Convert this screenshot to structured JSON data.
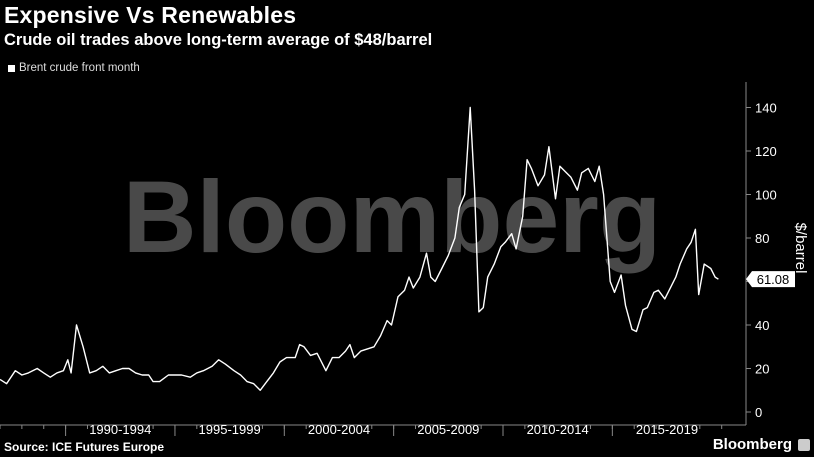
{
  "header": {
    "title": "Expensive Vs Renewables",
    "subtitle": "Crude oil trades above long-term average of $48/barrel"
  },
  "legend": {
    "label": "Brent crude front month"
  },
  "footer": {
    "source": "Source: ICE Futures Europe",
    "brand": "Bloomberg"
  },
  "watermark": "Bloomberg",
  "colors": {
    "background": "#000000",
    "line": "#ffffff",
    "axis": "#888888",
    "watermark": "#666666"
  },
  "chart_data": {
    "type": "line",
    "title": "Expensive Vs Renewables",
    "subtitle": "Crude oil trades above long-term average of $48/barrel",
    "ylabel": "$/barrel",
    "ylim": [
      0,
      145
    ],
    "xlim": [
      1987.0,
      2020.7
    ],
    "yticks": [
      0,
      20,
      40,
      60,
      80,
      100,
      120,
      140
    ],
    "xtick_labels": [
      {
        "label": "1990-1994",
        "start": 1990,
        "end": 1995
      },
      {
        "label": "1995-1999",
        "start": 1995,
        "end": 2000
      },
      {
        "label": "2000-2004",
        "start": 2000,
        "end": 2005
      },
      {
        "label": "2005-2009",
        "start": 2005,
        "end": 2010
      },
      {
        "label": "2010-2014",
        "start": 2010,
        "end": 2015
      },
      {
        "label": "2015-2019",
        "start": 2015,
        "end": 2020
      }
    ],
    "last_value_label": "61.08",
    "series": [
      {
        "name": "Brent crude front month",
        "points": [
          [
            1987.0,
            15
          ],
          [
            1987.3,
            13
          ],
          [
            1987.7,
            19
          ],
          [
            1988.0,
            17
          ],
          [
            1988.3,
            18
          ],
          [
            1988.7,
            20
          ],
          [
            1989.0,
            18
          ],
          [
            1989.3,
            16
          ],
          [
            1989.6,
            18
          ],
          [
            1989.9,
            19
          ],
          [
            1990.1,
            24
          ],
          [
            1990.25,
            18
          ],
          [
            1990.5,
            40
          ],
          [
            1990.8,
            30
          ],
          [
            1991.1,
            18
          ],
          [
            1991.4,
            19
          ],
          [
            1991.7,
            21
          ],
          [
            1992.0,
            18
          ],
          [
            1992.3,
            19
          ],
          [
            1992.6,
            20
          ],
          [
            1992.9,
            20
          ],
          [
            1993.2,
            18
          ],
          [
            1993.5,
            17
          ],
          [
            1993.8,
            17
          ],
          [
            1994.0,
            14
          ],
          [
            1994.3,
            14
          ],
          [
            1994.7,
            17
          ],
          [
            1995.0,
            17
          ],
          [
            1995.3,
            17
          ],
          [
            1995.7,
            16
          ],
          [
            1996.0,
            18
          ],
          [
            1996.3,
            19
          ],
          [
            1996.7,
            21
          ],
          [
            1997.0,
            24
          ],
          [
            1997.3,
            22
          ],
          [
            1997.7,
            19
          ],
          [
            1998.0,
            17
          ],
          [
            1998.3,
            14
          ],
          [
            1998.6,
            13
          ],
          [
            1998.9,
            10
          ],
          [
            1999.2,
            14
          ],
          [
            1999.5,
            18
          ],
          [
            1999.8,
            23
          ],
          [
            2000.1,
            25
          ],
          [
            2000.5,
            25
          ],
          [
            2000.7,
            31
          ],
          [
            2000.9,
            30
          ],
          [
            2001.2,
            26
          ],
          [
            2001.5,
            27
          ],
          [
            2001.8,
            21
          ],
          [
            2001.9,
            19
          ],
          [
            2002.2,
            25
          ],
          [
            2002.5,
            25
          ],
          [
            2002.8,
            28
          ],
          [
            2003.0,
            31
          ],
          [
            2003.2,
            25
          ],
          [
            2003.5,
            28
          ],
          [
            2003.8,
            29
          ],
          [
            2004.1,
            30
          ],
          [
            2004.4,
            35
          ],
          [
            2004.7,
            42
          ],
          [
            2004.9,
            40
          ],
          [
            2005.2,
            53
          ],
          [
            2005.5,
            56
          ],
          [
            2005.7,
            62
          ],
          [
            2005.9,
            57
          ],
          [
            2006.2,
            62
          ],
          [
            2006.5,
            73
          ],
          [
            2006.7,
            62
          ],
          [
            2006.9,
            60
          ],
          [
            2007.2,
            66
          ],
          [
            2007.5,
            72
          ],
          [
            2007.8,
            80
          ],
          [
            2008.0,
            94
          ],
          [
            2008.25,
            100
          ],
          [
            2008.5,
            140
          ],
          [
            2008.7,
            102
          ],
          [
            2008.9,
            46
          ],
          [
            2009.1,
            48
          ],
          [
            2009.3,
            62
          ],
          [
            2009.6,
            68
          ],
          [
            2009.9,
            76
          ],
          [
            2010.1,
            78
          ],
          [
            2010.4,
            82
          ],
          [
            2010.6,
            75
          ],
          [
            2010.9,
            90
          ],
          [
            2011.1,
            116
          ],
          [
            2011.3,
            112
          ],
          [
            2011.6,
            104
          ],
          [
            2011.9,
            109
          ],
          [
            2012.1,
            122
          ],
          [
            2012.4,
            98
          ],
          [
            2012.6,
            113
          ],
          [
            2012.9,
            110
          ],
          [
            2013.1,
            108
          ],
          [
            2013.4,
            102
          ],
          [
            2013.6,
            110
          ],
          [
            2013.9,
            112
          ],
          [
            2014.2,
            106
          ],
          [
            2014.4,
            113
          ],
          [
            2014.6,
            100
          ],
          [
            2014.9,
            60
          ],
          [
            2015.1,
            55
          ],
          [
            2015.4,
            63
          ],
          [
            2015.6,
            49
          ],
          [
            2015.9,
            38
          ],
          [
            2016.1,
            37
          ],
          [
            2016.4,
            47
          ],
          [
            2016.6,
            48
          ],
          [
            2016.9,
            55
          ],
          [
            2017.1,
            56
          ],
          [
            2017.4,
            52
          ],
          [
            2017.6,
            56
          ],
          [
            2017.9,
            62
          ],
          [
            2018.1,
            68
          ],
          [
            2018.4,
            75
          ],
          [
            2018.6,
            78
          ],
          [
            2018.8,
            84
          ],
          [
            2018.95,
            54
          ],
          [
            2019.2,
            68
          ],
          [
            2019.5,
            66
          ],
          [
            2019.7,
            62
          ],
          [
            2019.85,
            61.08
          ]
        ]
      }
    ]
  }
}
